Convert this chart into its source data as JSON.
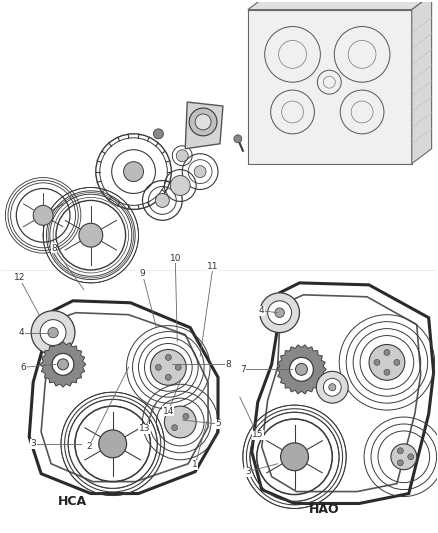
{
  "background_color": "#ffffff",
  "fig_width": 4.38,
  "fig_height": 5.33,
  "dpi": 100,
  "line_color": "#3a3a3a",
  "label_color": "#3a3a3a",
  "gray_fill": "#c8c8c8",
  "dark_fill": "#888888",
  "light_fill": "#e8e8e8"
}
